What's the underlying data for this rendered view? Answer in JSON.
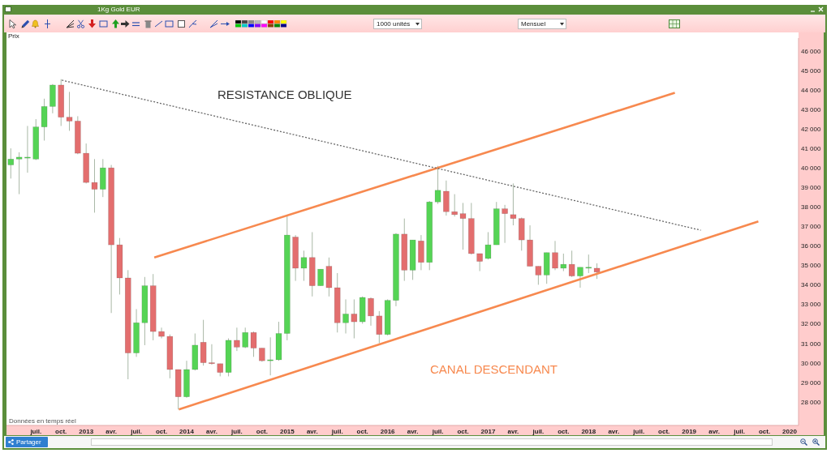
{
  "chart_data": {
    "type": "candlestick",
    "title": "1Kg Gold EUR",
    "series": [
      {
        "x": [
          "2012-04",
          "2012-05",
          "2012-06",
          "2012-07",
          "2012-08",
          "2012-09",
          "2012-10",
          "2012-11",
          "2012-12",
          "2013-01",
          "2013-02",
          "2013-03",
          "2013-04",
          "2013-05",
          "2013-06",
          "2013-07",
          "2013-08",
          "2013-09",
          "2013-10",
          "2013-11",
          "2013-12",
          "2014-01",
          "2014-02",
          "2014-03",
          "2014-04",
          "2014-05",
          "2014-06",
          "2014-07",
          "2014-08",
          "2014-09",
          "2014-10",
          "2014-11",
          "2014-12",
          "2015-01",
          "2015-02",
          "2015-03",
          "2015-04",
          "2015-05",
          "2015-06",
          "2015-07",
          "2015-08",
          "2015-09",
          "2015-10",
          "2015-11",
          "2015-12",
          "2016-01",
          "2016-02",
          "2016-03",
          "2016-04",
          "2016-05",
          "2016-06",
          "2016-07",
          "2016-08",
          "2016-09",
          "2016-10",
          "2016-11",
          "2016-12",
          "2017-01",
          "2017-02",
          "2017-03",
          "2017-04",
          "2017-05",
          "2017-06",
          "2017-07",
          "2017-08",
          "2017-09",
          "2017-10",
          "2017-11",
          "2017-12",
          "2018-01",
          "2018-02"
        ],
        "ohlc": [
          [
            40150,
            41000,
            39450,
            40450
          ],
          [
            40450,
            40800,
            38650,
            40550
          ],
          [
            40500,
            42150,
            39750,
            40550
          ],
          [
            40450,
            42500,
            40400,
            42100
          ],
          [
            42100,
            43550,
            41400,
            43150
          ],
          [
            43150,
            44300,
            42800,
            44250
          ],
          [
            44250,
            44550,
            42150,
            42600
          ],
          [
            42600,
            43900,
            41900,
            42400
          ],
          [
            42400,
            42650,
            40700,
            40750
          ],
          [
            40750,
            41250,
            39200,
            39250
          ],
          [
            39250,
            40450,
            37700,
            38900
          ],
          [
            38900,
            40450,
            38500,
            40000
          ],
          [
            40000,
            40150,
            32550,
            36050
          ],
          [
            36050,
            36400,
            33500,
            34350
          ],
          [
            34350,
            34750,
            29150,
            30500
          ],
          [
            30500,
            32750,
            30300,
            32050
          ],
          [
            32050,
            34400,
            30900,
            33950
          ],
          [
            33950,
            34550,
            31150,
            31600
          ],
          [
            31600,
            31800,
            31250,
            31350
          ],
          [
            31350,
            31450,
            29200,
            29650
          ],
          [
            29650,
            29650,
            27600,
            28250
          ],
          [
            28250,
            30100,
            28200,
            29650
          ],
          [
            29650,
            31500,
            29600,
            30900
          ],
          [
            31050,
            32200,
            29850,
            30000
          ],
          [
            30000,
            30950,
            29900,
            29950
          ],
          [
            29950,
            29950,
            29300,
            29500
          ],
          [
            29500,
            31250,
            29300,
            31150
          ],
          [
            31150,
            31800,
            30600,
            30800
          ],
          [
            30800,
            31800,
            30750,
            31550
          ],
          [
            31550,
            31600,
            30300,
            30750
          ],
          [
            30750,
            30750,
            30050,
            30100
          ],
          [
            30100,
            31300,
            29350,
            30150
          ],
          [
            30150,
            32100,
            30100,
            31500
          ],
          [
            31500,
            37550,
            31150,
            36550
          ],
          [
            36450,
            36550,
            34200,
            34850
          ],
          [
            34850,
            35750,
            34200,
            35400
          ],
          [
            35400,
            36700,
            33400,
            33950
          ],
          [
            33950,
            34800,
            33950,
            34800
          ],
          [
            34950,
            35400,
            33400,
            33850
          ],
          [
            33850,
            34600,
            31550,
            32050
          ],
          [
            32050,
            33250,
            31500,
            32500
          ],
          [
            32500,
            33250,
            31250,
            32100
          ],
          [
            32100,
            33400,
            32000,
            33350
          ],
          [
            33300,
            33350,
            31900,
            32400
          ],
          [
            32400,
            32650,
            31000,
            31450
          ],
          [
            31450,
            33250,
            31400,
            33200
          ],
          [
            33200,
            36650,
            32900,
            36600
          ],
          [
            36600,
            37400,
            34200,
            34750
          ],
          [
            34750,
            36300,
            34250,
            36300
          ],
          [
            36250,
            36550,
            34750,
            35150
          ],
          [
            35150,
            38300,
            34750,
            38250
          ],
          [
            38250,
            40100,
            38150,
            38850
          ],
          [
            38800,
            39350,
            37550,
            37750
          ],
          [
            37750,
            38650,
            37500,
            37600
          ],
          [
            37650,
            38200,
            35800,
            37400
          ],
          [
            37400,
            38200,
            35550,
            35600
          ],
          [
            35600,
            35600,
            34700,
            35200
          ],
          [
            35350,
            36700,
            35300,
            36050
          ],
          [
            36050,
            38250,
            36050,
            37900
          ],
          [
            37900,
            38100,
            36150,
            37650
          ],
          [
            37600,
            39200,
            37050,
            37400
          ],
          [
            37400,
            37450,
            35750,
            36300
          ],
          [
            36300,
            37050,
            34950,
            34950
          ],
          [
            34950,
            34950,
            34000,
            34500
          ],
          [
            34500,
            35650,
            34050,
            35650
          ],
          [
            35650,
            36250,
            34750,
            34850
          ],
          [
            34850,
            35600,
            34700,
            35050
          ],
          [
            35050,
            35750,
            34400,
            34450
          ],
          [
            34450,
            34900,
            33850,
            34900
          ],
          [
            34850,
            35550,
            34600,
            34900
          ],
          [
            34850,
            35100,
            34300,
            34650
          ]
        ],
        "colors": [
          "#55d455",
          "#55d455",
          "#55d455",
          "#55d455",
          "#55d455",
          "#55d455",
          "#e36e6e",
          "#e36e6e",
          "#e36e6e",
          "#e36e6e",
          "#e36e6e",
          "#55d455",
          "#e36e6e",
          "#e36e6e",
          "#e36e6e",
          "#55d455",
          "#55d455",
          "#e36e6e",
          "#e36e6e",
          "#e36e6e",
          "#e36e6e",
          "#55d455",
          "#55d455",
          "#e36e6e",
          "#e36e6e",
          "#e36e6e",
          "#55d455",
          "#e36e6e",
          "#55d455",
          "#e36e6e",
          "#e36e6e",
          "#55d455",
          "#55d455",
          "#55d455",
          "#e36e6e",
          "#55d455",
          "#e36e6e",
          "#55d455",
          "#e36e6e",
          "#e36e6e",
          "#55d455",
          "#e36e6e",
          "#55d455",
          "#e36e6e",
          "#e36e6e",
          "#55d455",
          "#55d455",
          "#e36e6e",
          "#55d455",
          "#e36e6e",
          "#55d455",
          "#55d455",
          "#e36e6e",
          "#e36e6e",
          "#e36e6e",
          "#e36e6e",
          "#e36e6e",
          "#55d455",
          "#55d455",
          "#e36e6e",
          "#e36e6e",
          "#e36e6e",
          "#e36e6e",
          "#e36e6e",
          "#55d455",
          "#e36e6e",
          "#55d455",
          "#e36e6e",
          "#55d455",
          "#55d455",
          "#e36e6e"
        ]
      },
      {
        "type": "line",
        "x": [
          "2013-09-05",
          "2018-11-10"
        ],
        "values": [
          35400,
          43850
        ],
        "color": "#f7894f",
        "line_style": "solid"
      },
      {
        "type": "line",
        "x": [
          "2013-12-03",
          "2019-09-09"
        ],
        "values": [
          27600,
          37250
        ],
        "color": "#f7894f",
        "line_style": "solid"
      },
      {
        "type": "line",
        "x": [
          "2012-10-04",
          "2019-02-12"
        ],
        "values": [
          44500,
          36800
        ],
        "color": "#666666",
        "line_style": "dotted"
      }
    ],
    "marker": "none",
    "xlim": [
      "2012-03-16",
      "2020-02-03"
    ],
    "xticks": [
      {
        "value": "2012-07",
        "label": "juil."
      },
      {
        "value": "2012-10",
        "label": "oct."
      },
      {
        "value": "2013-01",
        "label": "2013"
      },
      {
        "value": "2013-04",
        "label": "avr."
      },
      {
        "value": "2013-07",
        "label": "juil."
      },
      {
        "value": "2013-10",
        "label": "oct."
      },
      {
        "value": "2014-01",
        "label": "2014"
      },
      {
        "value": "2014-04",
        "label": "avr."
      },
      {
        "value": "2014-07",
        "label": "juil."
      },
      {
        "value": "2014-10",
        "label": "oct."
      },
      {
        "value": "2015-01",
        "label": "2015"
      },
      {
        "value": "2015-04",
        "label": "avr."
      },
      {
        "value": "2015-07",
        "label": "juil."
      },
      {
        "value": "2015-10",
        "label": "oct."
      },
      {
        "value": "2016-01",
        "label": "2016"
      },
      {
        "value": "2016-04",
        "label": "avr."
      },
      {
        "value": "2016-07",
        "label": "juil."
      },
      {
        "value": "2016-10",
        "label": "oct."
      },
      {
        "value": "2017-01",
        "label": "2017"
      },
      {
        "value": "2017-04",
        "label": "avr."
      },
      {
        "value": "2017-07",
        "label": "juil."
      },
      {
        "value": "2017-10",
        "label": "oct."
      },
      {
        "value": "2018-01",
        "label": "2018"
      },
      {
        "value": "2018-04",
        "label": "avr."
      },
      {
        "value": "2018-07",
        "label": "juil."
      },
      {
        "value": "2018-10",
        "label": "oct."
      },
      {
        "value": "2019-01",
        "label": "2019"
      },
      {
        "value": "2019-04",
        "label": "avr."
      },
      {
        "value": "2019-07",
        "label": "juil."
      },
      {
        "value": "2019-10",
        "label": "oct."
      },
      {
        "value": "2020-01",
        "label": "2020"
      }
    ],
    "ylim": [
      26780,
      46660
    ],
    "yticks": [
      {
        "value": 28000,
        "label": "28 000"
      },
      {
        "value": 29000,
        "label": "29 000"
      },
      {
        "value": 30000,
        "label": "30 000"
      },
      {
        "value": 31000,
        "label": "31 000"
      },
      {
        "value": 32000,
        "label": "32 000"
      },
      {
        "value": 33000,
        "label": "33 000"
      },
      {
        "value": 34000,
        "label": "34 000"
      },
      {
        "value": 35000,
        "label": "35 000"
      },
      {
        "value": 36000,
        "label": "36 000"
      },
      {
        "value": 37000,
        "label": "37 000"
      },
      {
        "value": 38000,
        "label": "38 000"
      },
      {
        "value": 39000,
        "label": "39 000"
      },
      {
        "value": 40000,
        "label": "40 000"
      },
      {
        "value": 41000,
        "label": "41 000"
      },
      {
        "value": 42000,
        "label": "42 000"
      },
      {
        "value": 43000,
        "label": "43 000"
      },
      {
        "value": 44000,
        "label": "44 000"
      },
      {
        "value": 45000,
        "label": "45 000"
      },
      {
        "value": 46000,
        "label": "46 000"
      }
    ],
    "annotations": [
      "RESISTANCE OBLIQUE",
      "CANAL DESCENDANT",
      "Données en temps réel",
      "1000 unités",
      "Mensuel",
      "Prix",
      "Partager"
    ]
  }
}
